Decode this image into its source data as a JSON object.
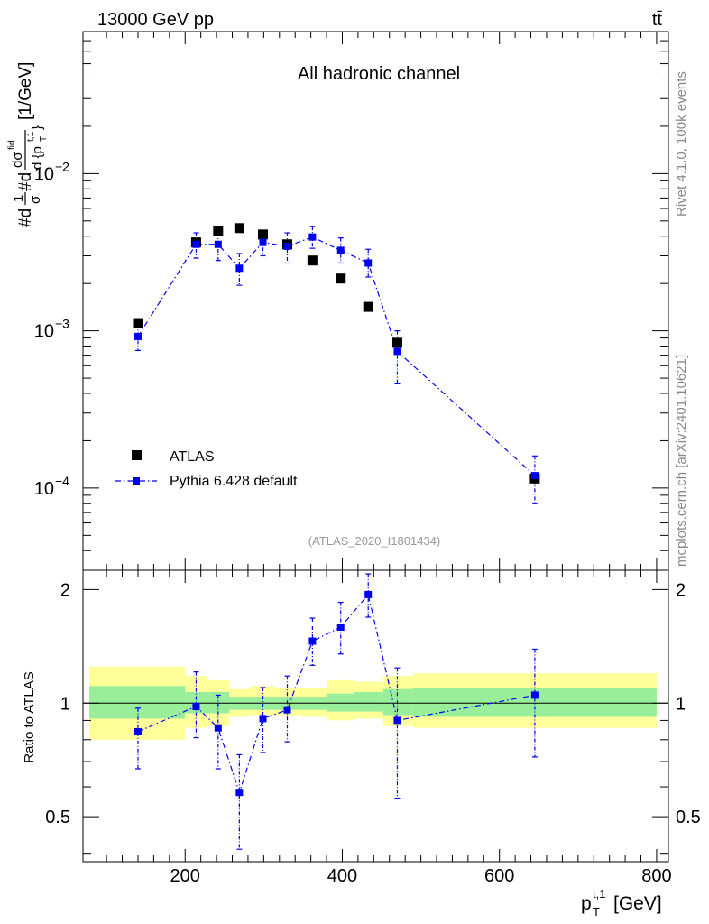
{
  "header": {
    "energy_label": "13000 GeV pp",
    "process_label": "tt̄"
  },
  "side_labels": {
    "rivet": "Rivet 4.1.0,  100k events",
    "mcplots": "mcplots.cern.ch [arXiv:2401.10621]"
  },
  "chart_data": [
    {
      "type": "scatter",
      "title": "All hadronic channel",
      "xlabel": "p_T^{t,1} [GeV]",
      "ylabel": "#d1/σ #d dσ/d{p_T^{t,1}} [1/GeV]",
      "ylabel_parts": {
        "pre": "#d",
        "frac1_num": "1",
        "frac1_den": "σ",
        "mid": "#d",
        "frac2_num": "dσ",
        "frac2_num_sup": "fid",
        "frac2_den": "d {p",
        "frac2_den_sub": "T",
        "frac2_den_sup": "t,1",
        "frac2_den_close": "}",
        "units": "[1/GeV]"
      },
      "yscale": "log",
      "xlim": [
        70,
        815
      ],
      "ylim": [
        3e-05,
        0.08
      ],
      "y_ticks": [
        {
          "value": 0.0001,
          "base": "10",
          "exp": "−4"
        },
        {
          "value": 0.001,
          "base": "10",
          "exp": "−3"
        },
        {
          "value": 0.01,
          "base": "10",
          "exp": "−2"
        }
      ],
      "watermark": "(ATLAS_2020_I1801434)",
      "legend_position": "lower-left",
      "series": [
        {
          "name": "ATLAS",
          "style": "black squares",
          "color": "#000000",
          "x": [
            140,
            214,
            242,
            269,
            299,
            330,
            362,
            398,
            433,
            470,
            645
          ],
          "y": [
            0.00112,
            0.00365,
            0.00432,
            0.0045,
            0.0041,
            0.00355,
            0.0028,
            0.00215,
            0.00142,
            0.00084,
            0.000115
          ]
        },
        {
          "name": "Pythia 6.428 default",
          "style": "blue squares, dash-dotted line",
          "color": "#0000ee",
          "x": [
            140,
            214,
            242,
            269,
            299,
            330,
            362,
            398,
            433,
            470,
            645
          ],
          "y": [
            0.00092,
            0.00355,
            0.00355,
            0.0025,
            0.00365,
            0.00345,
            0.00395,
            0.00325,
            0.0027,
            0.00074,
            0.00012
          ],
          "y_low": [
            0.00075,
            0.0029,
            0.0028,
            0.00195,
            0.003,
            0.0027,
            0.00335,
            0.0027,
            0.0022,
            0.00046,
            8e-05
          ],
          "y_high": [
            0.0011,
            0.0042,
            0.0042,
            0.0031,
            0.0043,
            0.0042,
            0.0046,
            0.0039,
            0.0033,
            0.001,
            0.00016
          ]
        }
      ]
    },
    {
      "type": "scatter",
      "xlabel": "p_T^{t,1} [GeV]",
      "ylabel": "Ratio to ATLAS",
      "ylim": [
        0.38,
        2.25
      ],
      "xlim": [
        70,
        815
      ],
      "x_ticks": [
        200,
        400,
        600,
        800
      ],
      "y_ticks": [
        0.5,
        1,
        2
      ],
      "y_tick_labels": [
        "0.5",
        "1",
        "2"
      ],
      "x_tick_labels": [
        "200",
        "400",
        "600",
        "800"
      ],
      "reference_line": 1,
      "bands": {
        "stat_color": "#99ee99",
        "syst_color": "#ffff99",
        "bins": [
          {
            "x0": 78,
            "x1": 200,
            "stat": [
              0.91,
              1.11
            ],
            "total": [
              0.8,
              1.25
            ]
          },
          {
            "x0": 200,
            "x1": 228,
            "stat": [
              0.94,
              1.07
            ],
            "total": [
              0.86,
              1.18
            ]
          },
          {
            "x0": 228,
            "x1": 256,
            "stat": [
              0.94,
              1.07
            ],
            "total": [
              0.87,
              1.15
            ]
          },
          {
            "x0": 256,
            "x1": 283,
            "stat": [
              0.96,
              1.04
            ],
            "total": [
              0.92,
              1.09
            ]
          },
          {
            "x0": 283,
            "x1": 314,
            "stat": [
              0.96,
              1.04
            ],
            "total": [
              0.93,
              1.11
            ]
          },
          {
            "x0": 314,
            "x1": 346,
            "stat": [
              0.96,
              1.04
            ],
            "total": [
              0.93,
              1.1
            ]
          },
          {
            "x0": 346,
            "x1": 380,
            "stat": [
              0.96,
              1.04
            ],
            "total": [
              0.92,
              1.1
            ]
          },
          {
            "x0": 380,
            "x1": 415,
            "stat": [
              0.95,
              1.06
            ],
            "total": [
              0.9,
              1.15
            ]
          },
          {
            "x0": 415,
            "x1": 452,
            "stat": [
              0.95,
              1.07
            ],
            "total": [
              0.91,
              1.14
            ]
          },
          {
            "x0": 452,
            "x1": 490,
            "stat": [
              0.93,
              1.09
            ],
            "total": [
              0.87,
              1.18
            ]
          },
          {
            "x0": 490,
            "x1": 800,
            "stat": [
              0.92,
              1.1
            ],
            "total": [
              0.86,
              1.2
            ]
          }
        ]
      },
      "series": [
        {
          "name": "Pythia 6.428 default / ATLAS",
          "color": "#0000ee",
          "x": [
            140,
            214,
            242,
            269,
            299,
            330,
            362,
            398,
            433,
            470,
            645
          ],
          "y": [
            0.84,
            0.98,
            0.86,
            0.58,
            0.91,
            0.96,
            1.46,
            1.59,
            1.94,
            0.9,
            1.05
          ],
          "y_low": [
            0.67,
            0.81,
            0.67,
            0.41,
            0.74,
            0.79,
            1.26,
            1.35,
            1.69,
            0.56,
            0.72
          ],
          "y_high": [
            0.97,
            1.21,
            1.05,
            0.73,
            1.1,
            1.18,
            1.68,
            1.85,
            2.2,
            1.24,
            1.39
          ]
        }
      ]
    }
  ]
}
